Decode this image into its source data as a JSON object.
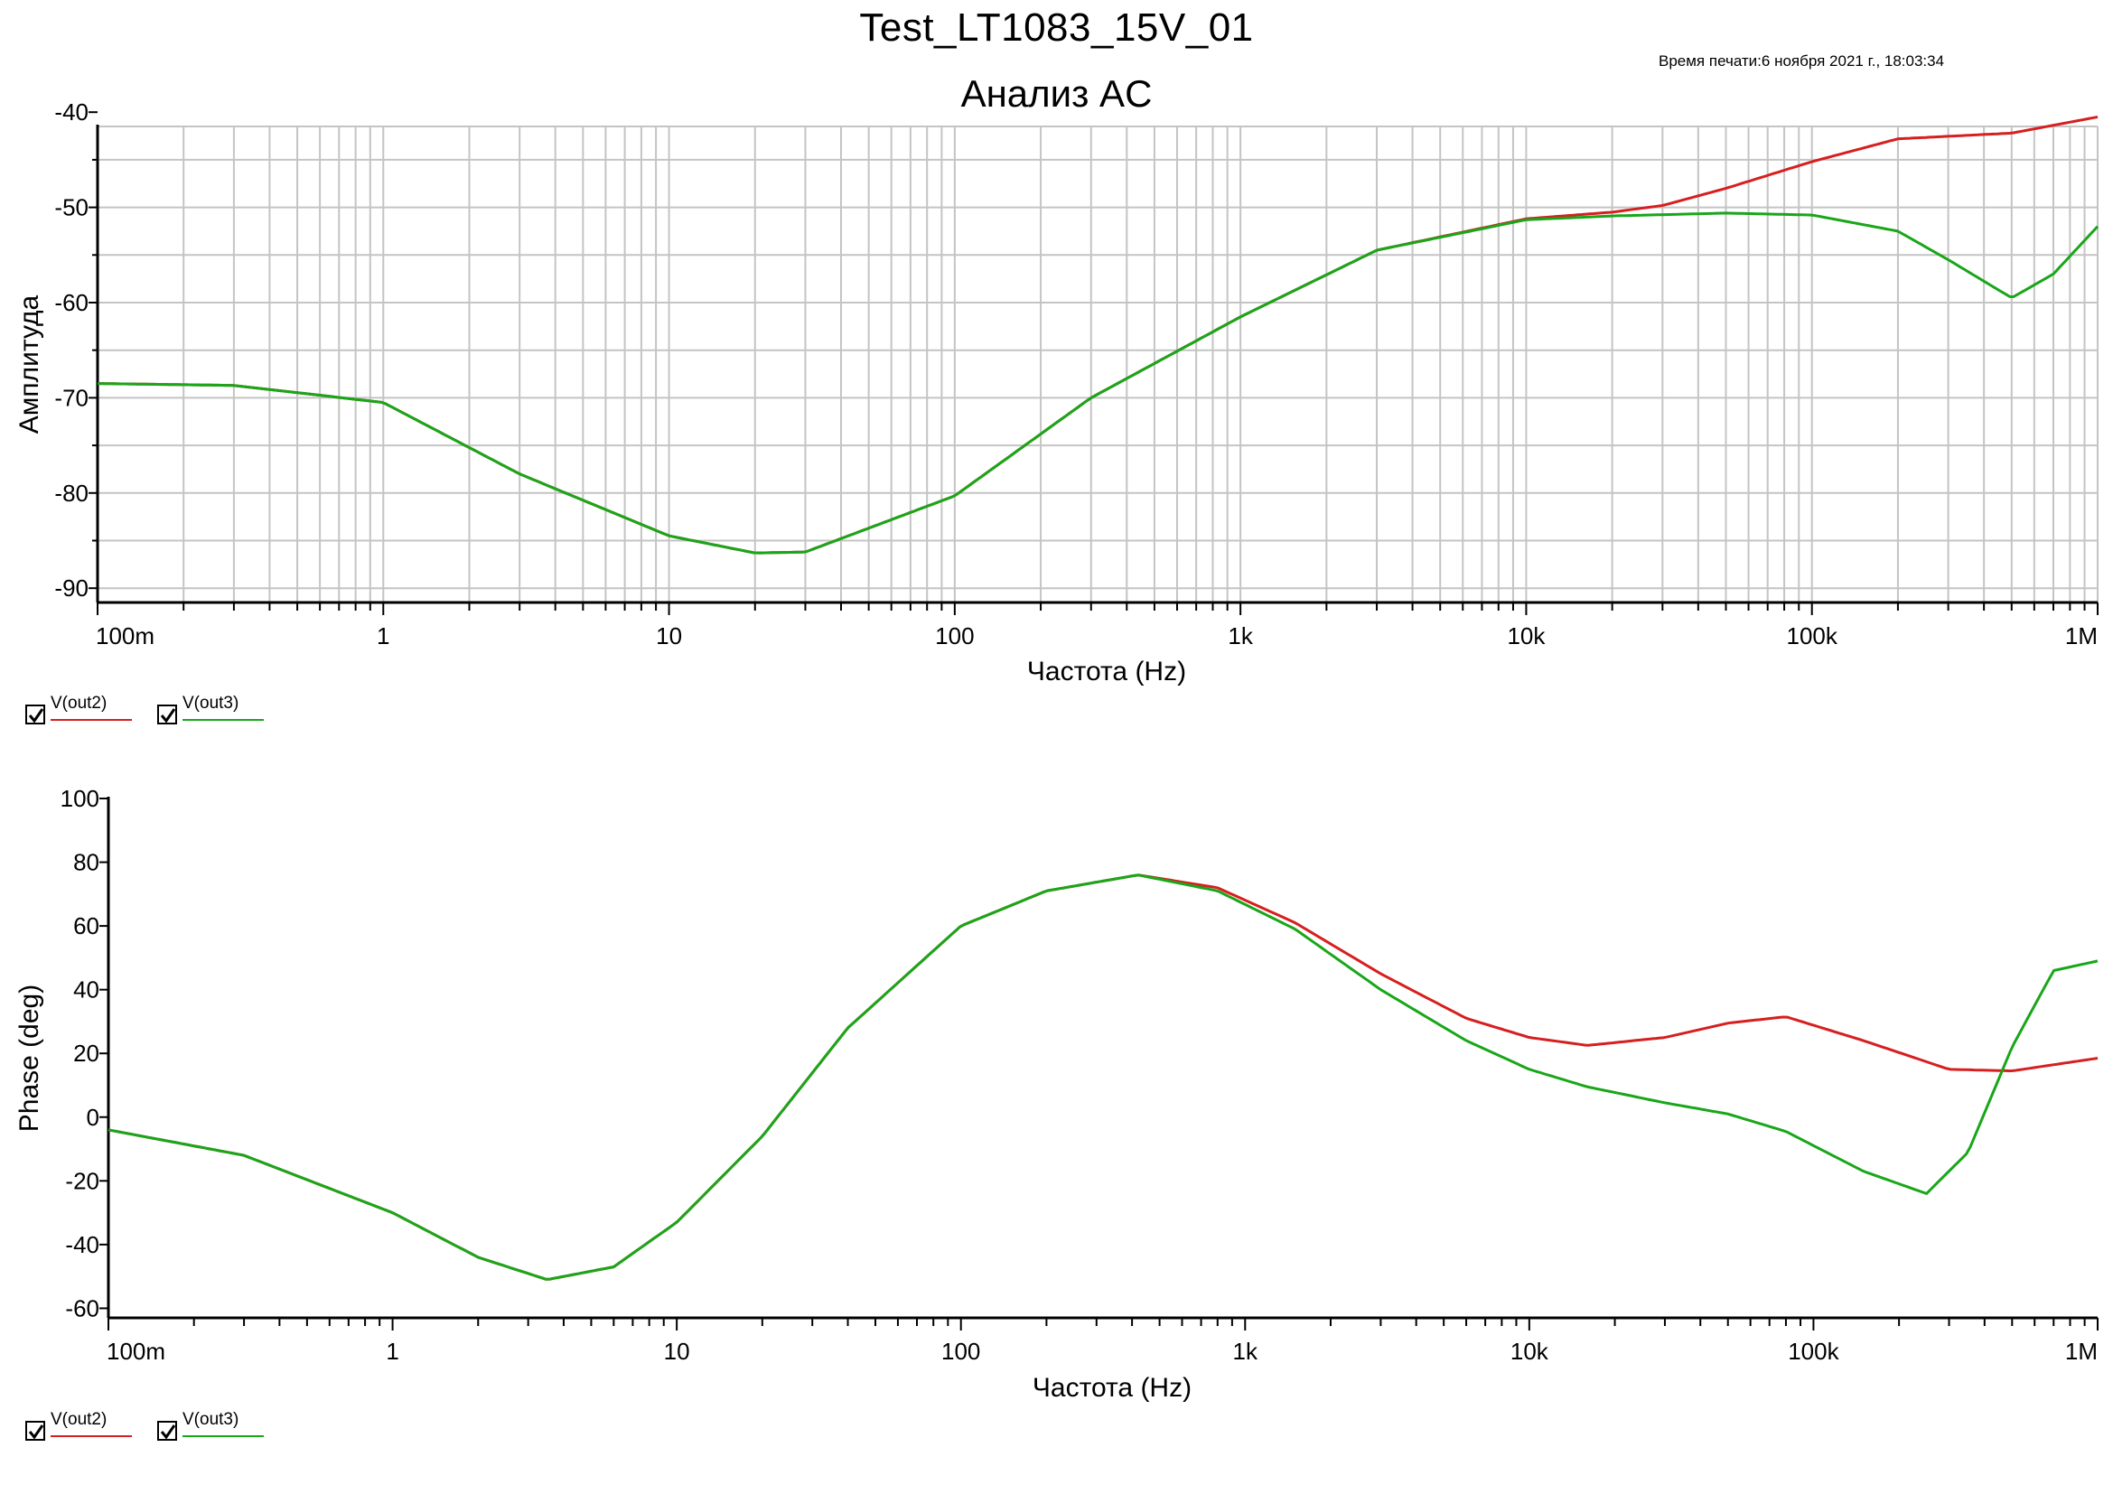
{
  "header": {
    "title": "Test_LT1083_15V_01",
    "print_time": "Время печати:6 ноября 2021 г., 18:03:34",
    "analysis": "Анализ AC"
  },
  "colors": {
    "out2": "#d61f1f",
    "out3": "#19a619",
    "grid": "#c4c4c4"
  },
  "legend": [
    {
      "label": "V(out2)",
      "color": "#d61f1f",
      "checked": true
    },
    {
      "label": "V(out3)",
      "color": "#19a619",
      "checked": true
    }
  ],
  "chart_data": [
    {
      "type": "line",
      "xlabel": "Частота (Hz)",
      "ylabel": "Амплитуда",
      "xscale": "log",
      "xlim": [
        0.1,
        1000000
      ],
      "ylim": [
        -91.5,
        -41.5
      ],
      "xticks": [
        {
          "value": 0.1,
          "label": "100m"
        },
        {
          "value": 1,
          "label": "1"
        },
        {
          "value": 10,
          "label": "10"
        },
        {
          "value": 100,
          "label": "100"
        },
        {
          "value": 1000,
          "label": "1k"
        },
        {
          "value": 10000,
          "label": "10k"
        },
        {
          "value": 100000,
          "label": "100k"
        },
        {
          "value": 1000000,
          "label": "1M"
        }
      ],
      "yticks": [
        -40,
        -50,
        -60,
        -70,
        -80,
        -90
      ],
      "grid": true,
      "series": [
        {
          "name": "V(out2)",
          "color": "#d61f1f",
          "x": [
            0.1,
            0.3,
            1,
            3,
            10,
            20,
            30,
            100,
            300,
            1000,
            3000,
            10000,
            20000,
            30000,
            50000,
            100000,
            200000,
            500000,
            1000000
          ],
          "y": [
            -68.5,
            -68.7,
            -70.5,
            -78,
            -84.5,
            -86.3,
            -86.2,
            -80.3,
            -70,
            -61.5,
            -54.5,
            -51.2,
            -50.5,
            -49.8,
            -48,
            -45.2,
            -42.8,
            -42.2,
            -40.5
          ]
        },
        {
          "name": "V(out3)",
          "color": "#19a619",
          "x": [
            0.1,
            0.3,
            1,
            3,
            10,
            20,
            30,
            100,
            300,
            1000,
            3000,
            10000,
            20000,
            50000,
            100000,
            200000,
            300000,
            500000,
            700000,
            1000000
          ],
          "y": [
            -68.5,
            -68.7,
            -70.5,
            -78,
            -84.5,
            -86.3,
            -86.2,
            -80.3,
            -70,
            -61.5,
            -54.5,
            -51.3,
            -50.9,
            -50.6,
            -50.8,
            -52.5,
            -55.5,
            -59.5,
            -57,
            -52
          ]
        }
      ]
    },
    {
      "type": "line",
      "xlabel": "Частота (Hz)",
      "ylabel": "Phase (deg)",
      "xscale": "log",
      "xlim": [
        0.1,
        1000000
      ],
      "ylim": [
        -63,
        100
      ],
      "xticks": [
        {
          "value": 0.1,
          "label": "100m"
        },
        {
          "value": 1,
          "label": "1"
        },
        {
          "value": 10,
          "label": "10"
        },
        {
          "value": 100,
          "label": "100"
        },
        {
          "value": 1000,
          "label": "1k"
        },
        {
          "value": 10000,
          "label": "10k"
        },
        {
          "value": 100000,
          "label": "100k"
        },
        {
          "value": 1000000,
          "label": "1M"
        }
      ],
      "yticks": [
        100,
        80,
        60,
        40,
        20,
        0,
        -20,
        -40,
        -60
      ],
      "grid": false,
      "series": [
        {
          "name": "V(out2)",
          "color": "#d61f1f",
          "x": [
            0.1,
            0.3,
            1,
            2,
            3.5,
            6,
            10,
            20,
            40,
            100,
            200,
            420,
            800,
            1500,
            3000,
            6000,
            10000,
            16000,
            30000,
            50000,
            80000,
            150000,
            300000,
            500000,
            1000000
          ],
          "y": [
            -4,
            -12,
            -30,
            -44,
            -51,
            -47,
            -33,
            -6,
            28,
            60,
            71,
            76,
            72,
            61,
            45,
            31,
            25,
            22.5,
            25,
            29.5,
            31.5,
            24,
            15,
            14.5,
            18.5
          ]
        },
        {
          "name": "V(out3)",
          "color": "#19a619",
          "x": [
            0.1,
            0.3,
            1,
            2,
            3.5,
            6,
            10,
            20,
            40,
            100,
            200,
            420,
            800,
            1500,
            3000,
            6000,
            10000,
            16000,
            30000,
            50000,
            80000,
            150000,
            250000,
            350000,
            500000,
            700000,
            1000000
          ],
          "y": [
            -4,
            -12,
            -30,
            -44,
            -51,
            -47,
            -33,
            -6,
            28,
            60,
            71,
            76,
            71,
            59,
            40,
            24,
            15,
            9.5,
            4.5,
            1,
            -4.5,
            -17,
            -24,
            -11,
            22,
            46,
            49
          ]
        }
      ]
    }
  ]
}
